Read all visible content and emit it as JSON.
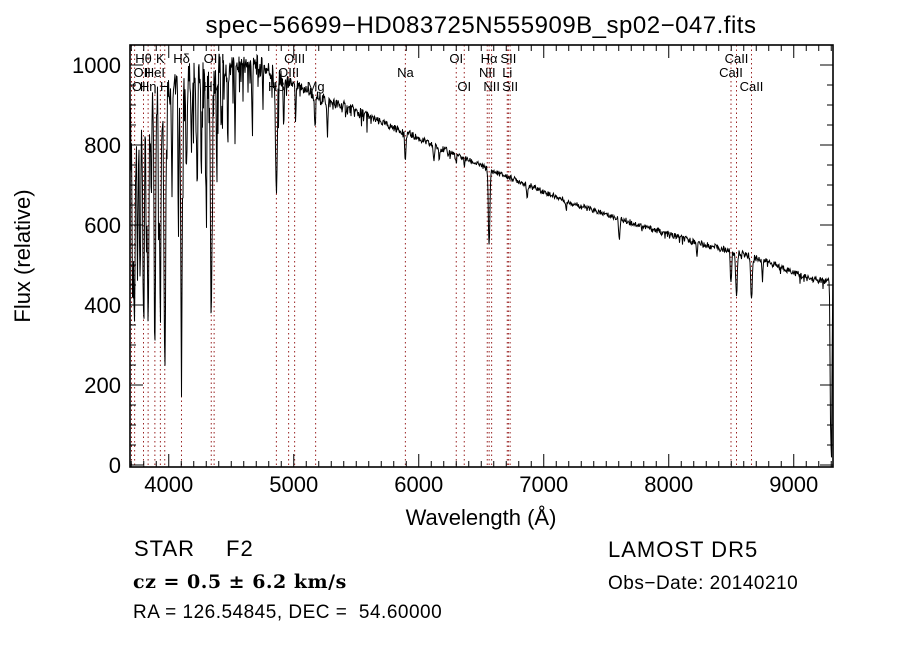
{
  "chart_data": {
    "type": "line",
    "title": "spec−56699−HD083725N555909B_sp02−047.fits",
    "xlabel": "Wavelength (Å)",
    "ylabel": "Flux (relative)",
    "xlim": [
      3690,
      9314
    ],
    "ylim": [
      -5,
      1050
    ],
    "xticks": [
      4000,
      5000,
      6000,
      7000,
      8000,
      9000
    ],
    "yticks": [
      0,
      200,
      400,
      600,
      800,
      1000
    ],
    "x_minor_step": 100,
    "y_minor_step": 50,
    "grid": false,
    "legend": false,
    "line_color": "#000000",
    "marker_line_color": "#992222",
    "spectral_markers": [
      {
        "label": "OI",
        "wavelength": 3702,
        "row": 3
      },
      {
        "label": "OII",
        "wavelength": 3727,
        "row": 2
      },
      {
        "label": "Hθ",
        "wavelength": 3798,
        "row": 1
      },
      {
        "label": "Hη",
        "wavelength": 3835,
        "row": 3
      },
      {
        "label": "HeI",
        "wavelength": 3889,
        "row": 2
      },
      {
        "label": "K",
        "wavelength": 3933,
        "row": 1
      },
      {
        "label": "H",
        "wavelength": 3968,
        "row": 3
      },
      {
        "label": "Hδ",
        "wavelength": 4102,
        "row": 1
      },
      {
        "label": "Hγ",
        "wavelength": 4340,
        "row": 3
      },
      {
        "label": "OIII",
        "wavelength": 4363,
        "row": 1
      },
      {
        "label": "Hβ",
        "wavelength": 4861,
        "row": 3
      },
      {
        "label": "OIII",
        "wavelength": 4959,
        "row": 2
      },
      {
        "label": "OIII",
        "wavelength": 5007,
        "row": 1
      },
      {
        "label": "Mg",
        "wavelength": 5175,
        "row": 3
      },
      {
        "label": "Na",
        "wavelength": 5893,
        "row": 2
      },
      {
        "label": "OI",
        "wavelength": 6300,
        "row": 1
      },
      {
        "label": "OI",
        "wavelength": 6364,
        "row": 3
      },
      {
        "label": "NII",
        "wavelength": 6548,
        "row": 2
      },
      {
        "label": "Hα",
        "wavelength": 6563,
        "row": 1
      },
      {
        "label": "NII",
        "wavelength": 6583,
        "row": 3
      },
      {
        "label": "Li",
        "wavelength": 6708,
        "row": 2
      },
      {
        "label": "SII",
        "wavelength": 6717,
        "row": 1
      },
      {
        "label": "SII",
        "wavelength": 6731,
        "row": 3
      },
      {
        "label": "CaII",
        "wavelength": 8498,
        "row": 2
      },
      {
        "label": "CaII",
        "wavelength": 8542,
        "row": 1
      },
      {
        "label": "CaII",
        "wavelength": 8662,
        "row": 3
      }
    ],
    "continuum": [
      [
        3690,
        860
      ],
      [
        3750,
        885
      ],
      [
        3800,
        905
      ],
      [
        3850,
        920
      ],
      [
        3900,
        930
      ],
      [
        3950,
        940
      ],
      [
        4000,
        948
      ],
      [
        4100,
        958
      ],
      [
        4200,
        972
      ],
      [
        4300,
        985
      ],
      [
        4400,
        992
      ],
      [
        4500,
        1000
      ],
      [
        4600,
        1003
      ],
      [
        4700,
        1000
      ],
      [
        4800,
        988
      ],
      [
        4900,
        965
      ],
      [
        5000,
        950
      ],
      [
        5100,
        938
      ],
      [
        5200,
        918
      ],
      [
        5300,
        905
      ],
      [
        5400,
        895
      ],
      [
        5500,
        882
      ],
      [
        5600,
        870
      ],
      [
        5700,
        857
      ],
      [
        5800,
        843
      ],
      [
        5900,
        832
      ],
      [
        6000,
        816
      ],
      [
        6100,
        800
      ],
      [
        6200,
        788
      ],
      [
        6300,
        775
      ],
      [
        6400,
        762
      ],
      [
        6500,
        748
      ],
      [
        6600,
        733
      ],
      [
        6700,
        722
      ],
      [
        6800,
        710
      ],
      [
        6900,
        697
      ],
      [
        7000,
        683
      ],
      [
        7200,
        658
      ],
      [
        7400,
        636
      ],
      [
        7600,
        616
      ],
      [
        7800,
        596
      ],
      [
        8000,
        577
      ],
      [
        8200,
        558
      ],
      [
        8400,
        542
      ],
      [
        8600,
        527
      ],
      [
        8800,
        507
      ],
      [
        9000,
        482
      ],
      [
        9100,
        468
      ],
      [
        9200,
        462
      ],
      [
        9285,
        458
      ],
      [
        9295,
        70
      ],
      [
        9302,
        18
      ],
      [
        9308,
        320
      ],
      [
        9314,
        478
      ]
    ],
    "absorption_lines": [
      [
        3712,
        480,
        5
      ],
      [
        3727,
        520,
        5
      ],
      [
        3750,
        420,
        5
      ],
      [
        3771,
        450,
        5
      ],
      [
        3798,
        480,
        6
      ],
      [
        3820,
        300,
        4
      ],
      [
        3835,
        600,
        6
      ],
      [
        3860,
        250,
        4
      ],
      [
        3889,
        610,
        6
      ],
      [
        3920,
        300,
        4
      ],
      [
        3933,
        560,
        5
      ],
      [
        3968,
        650,
        7
      ],
      [
        4026,
        250,
        4
      ],
      [
        4077,
        220,
        4
      ],
      [
        4102,
        620,
        7
      ],
      [
        4144,
        200,
        4
      ],
      [
        4180,
        180,
        4
      ],
      [
        4227,
        280,
        4
      ],
      [
        4260,
        200,
        4
      ],
      [
        4300,
        280,
        5
      ],
      [
        4340,
        600,
        7
      ],
      [
        4383,
        250,
        4
      ],
      [
        4420,
        180,
        4
      ],
      [
        4472,
        200,
        4
      ],
      [
        4530,
        150,
        4
      ],
      [
        4668,
        130,
        4
      ],
      [
        4861,
        310,
        7
      ],
      [
        4920,
        120,
        4
      ],
      [
        5015,
        90,
        4
      ],
      [
        5170,
        90,
        5
      ],
      [
        5270,
        80,
        4
      ],
      [
        5893,
        80,
        5
      ],
      [
        6122,
        40,
        4
      ],
      [
        6163,
        30,
        3
      ],
      [
        6300,
        25,
        3
      ],
      [
        6364,
        20,
        3
      ],
      [
        6563,
        195,
        6
      ],
      [
        6867,
        40,
        5
      ],
      [
        7180,
        25,
        4
      ],
      [
        7605,
        45,
        6
      ],
      [
        8226,
        30,
        4
      ],
      [
        8498,
        85,
        5
      ],
      [
        8542,
        115,
        6
      ],
      [
        8662,
        110,
        6
      ],
      [
        8750,
        40,
        4
      ]
    ],
    "noise_bands": [
      [
        4500,
        38,
        0.28,
        150
      ],
      [
        4900,
        26,
        0.18,
        90
      ],
      [
        5600,
        16,
        0.1,
        45
      ],
      [
        6300,
        9,
        0.05,
        18
      ],
      [
        7600,
        7,
        0.03,
        12
      ],
      [
        9400,
        8,
        0.05,
        18
      ]
    ],
    "sample_step": 4
  },
  "annotations": {
    "class": "STAR",
    "subclass": "F2",
    "cz": "cz = 0.5 ± 6.2 km/s",
    "ra_dec": "RA = 126.54845, DEC =  54.60000",
    "survey": "LAMOST DR5",
    "obs_date": "Obs−Date: 20140210"
  }
}
